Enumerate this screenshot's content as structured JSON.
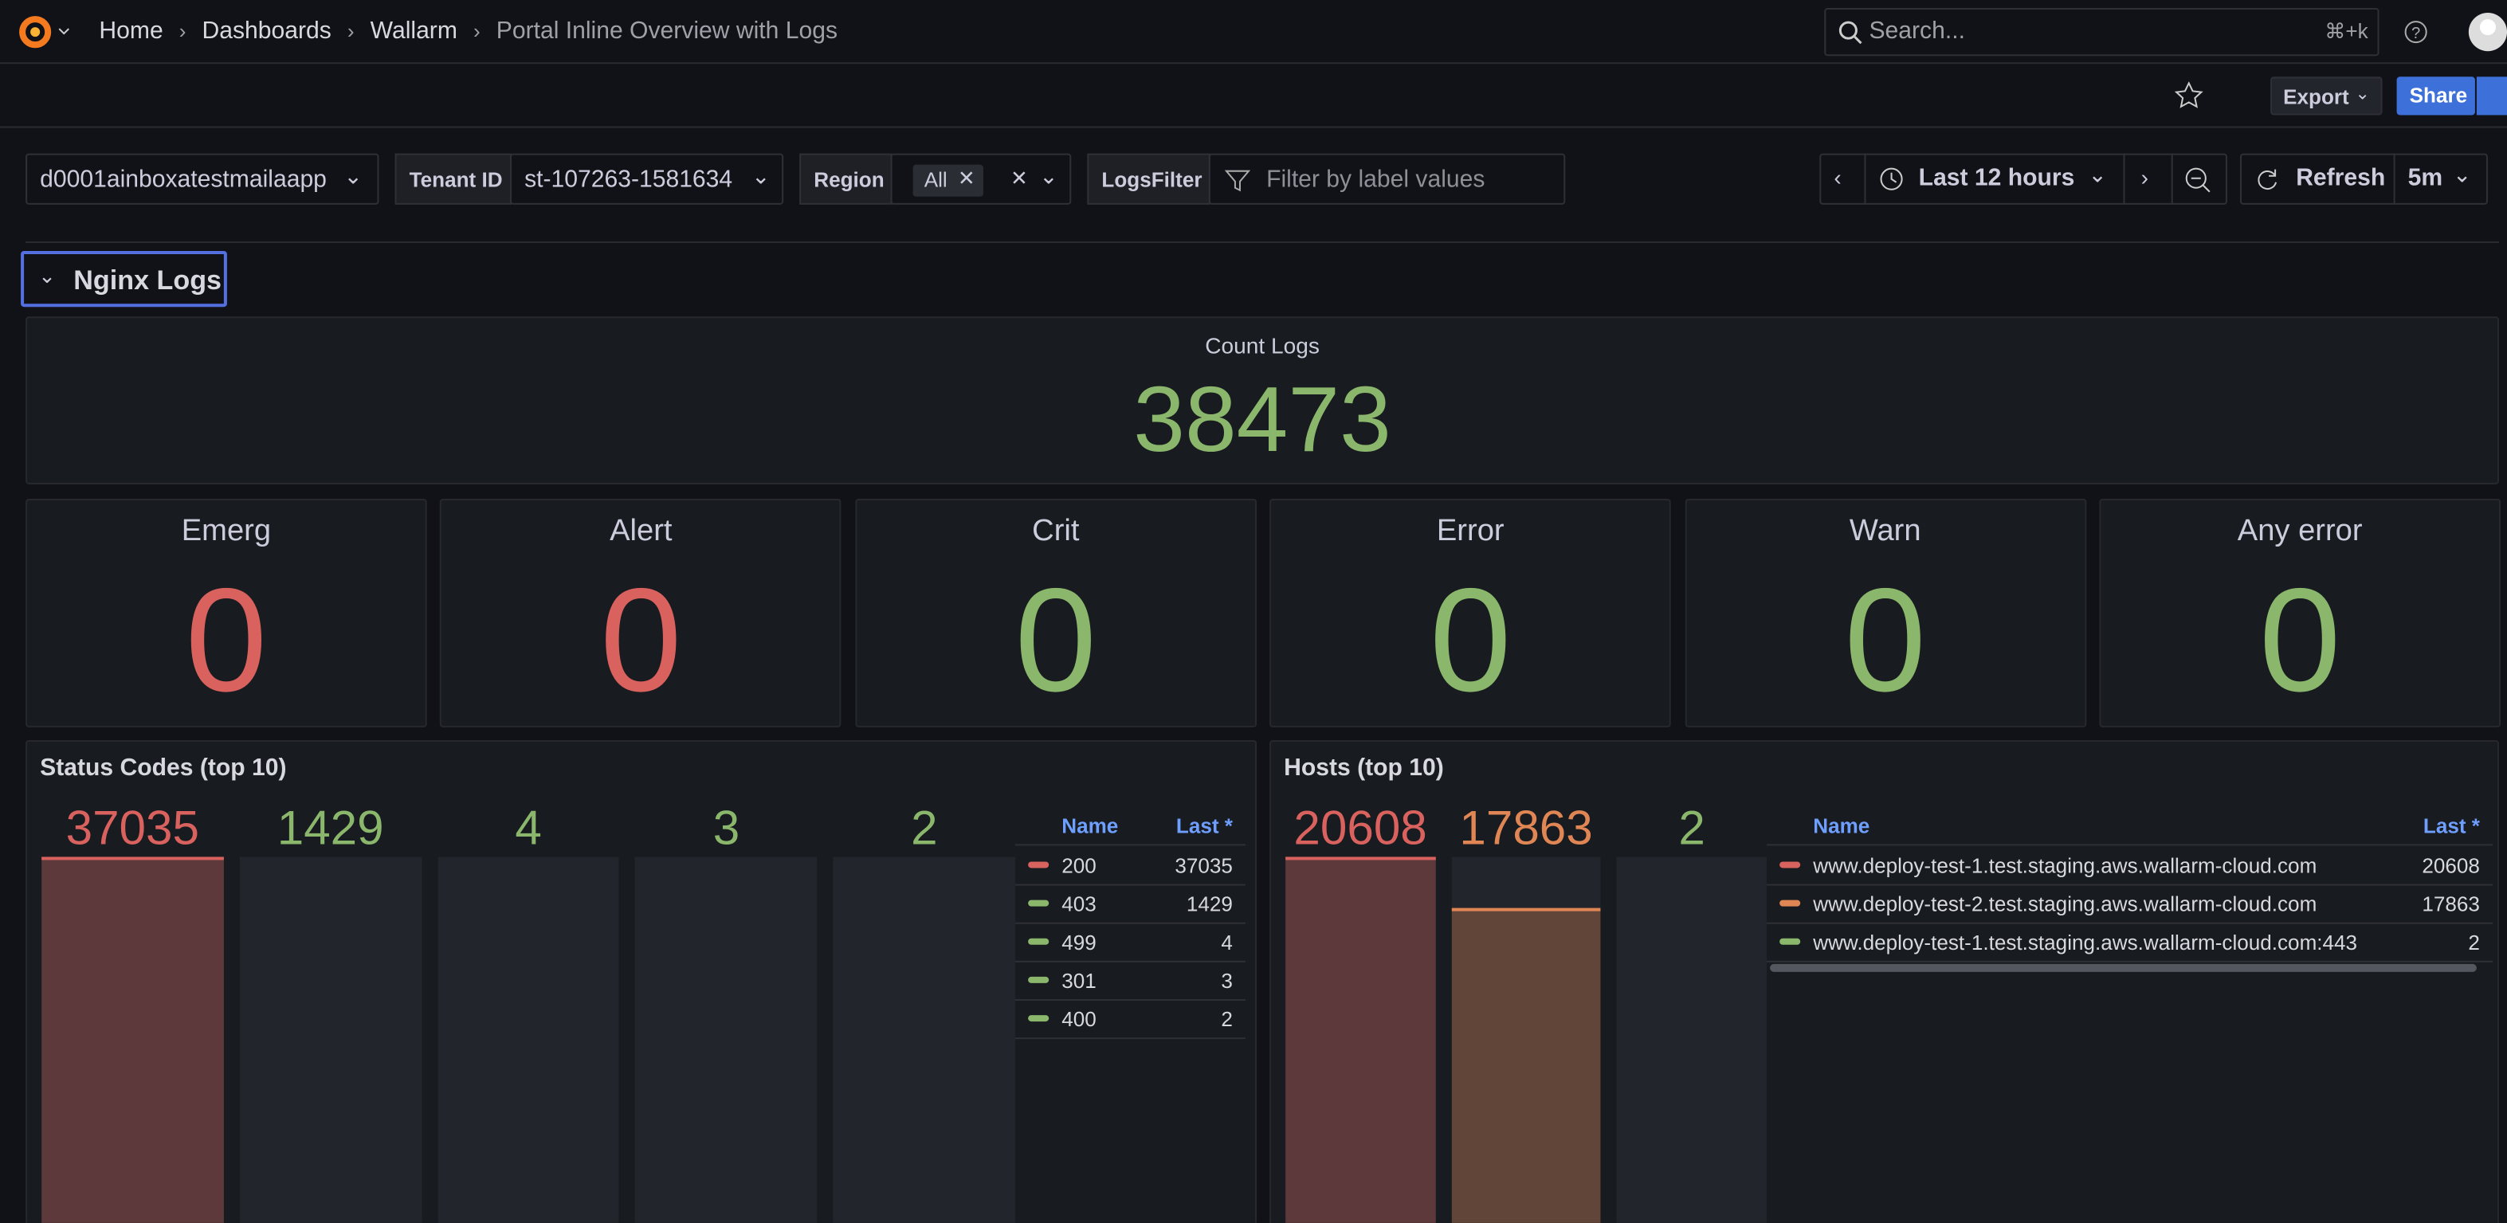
{
  "header": {
    "breadcrumbs": [
      "Home",
      "Dashboards",
      "Wallarm",
      "Portal Inline Overview with Logs"
    ],
    "search_placeholder": "Search...",
    "search_shortcut": "⌘+k"
  },
  "toolbar": {
    "export": "Export",
    "share": "Share"
  },
  "variables": [
    {
      "value": "d0001ainboxatestmailaapp"
    },
    {
      "label": "Tenant ID",
      "value": "st-107263-1581634"
    },
    {
      "label": "Region",
      "value": "All"
    },
    {
      "label": "LogsFilter",
      "placeholder": "Filter by label values"
    }
  ],
  "time_picker": {
    "range": "Last 12 hours",
    "refresh": "Refresh",
    "interval": "5m"
  },
  "row": {
    "title": "Nginx Logs"
  },
  "count_panel": {
    "title": "Count Logs",
    "value": 38473,
    "color": "#8bb76c"
  },
  "stat_panels": [
    {
      "title": "Emerg",
      "value": 0,
      "color": "#d9625f"
    },
    {
      "title": "Alert",
      "value": 0,
      "color": "#d9625f"
    },
    {
      "title": "Crit",
      "value": 0,
      "color": "#8bb76c"
    },
    {
      "title": "Error",
      "value": 0,
      "color": "#8bb76c"
    },
    {
      "title": "Warn",
      "value": 0,
      "color": "#8bb76c"
    },
    {
      "title": "Any error",
      "value": 0,
      "color": "#8bb76c"
    }
  ],
  "bar_panels": [
    {
      "title": "Status Codes (top 10)",
      "columns": [
        "Name",
        "Last *"
      ],
      "items": [
        {
          "name": "200",
          "value": 37035,
          "color": "#d9625f"
        },
        {
          "name": "403",
          "value": 1429,
          "color": "#8bb76c"
        },
        {
          "name": "499",
          "value": 4,
          "color": "#8bb76c"
        },
        {
          "name": "301",
          "value": 3,
          "color": "#8bb76c"
        },
        {
          "name": "400",
          "value": 2,
          "color": "#8bb76c"
        }
      ]
    },
    {
      "title": "Hosts (top 10)",
      "columns": [
        "Name",
        "Last *"
      ],
      "items": [
        {
          "name": "www.deploy-test-1.test.staging.aws.wallarm-cloud.com",
          "value": 20608,
          "color": "#d9625f"
        },
        {
          "name": "www.deploy-test-2.test.staging.aws.wallarm-cloud.com",
          "value": 17863,
          "color": "#e08655"
        },
        {
          "name": "www.deploy-test-1.test.staging.aws.wallarm-cloud.com:443",
          "value": 2,
          "color": "#8bb76c"
        }
      ]
    }
  ]
}
